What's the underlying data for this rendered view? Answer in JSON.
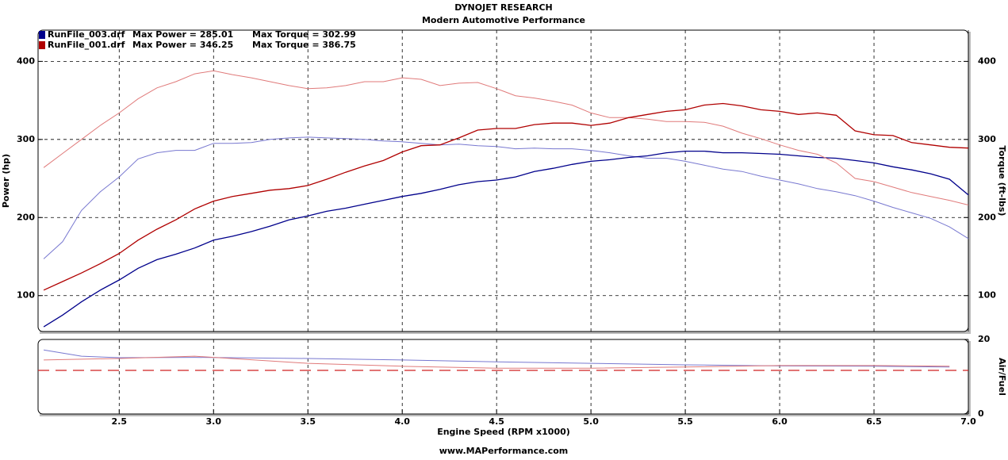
{
  "chart_data": {
    "type": "line",
    "title": "DYNOJET RESEARCH",
    "subtitle": "Modern Automotive Performance",
    "x_label": "Engine Speed (RPM x1000)",
    "y_label": "Power (hp)",
    "y2_label": "Torque (ft-lbs)",
    "afr_label": "Air/Fuel",
    "footer": "www.MAPerformance.com",
    "grid": true,
    "xlim": [
      2.07,
      7.0
    ],
    "xticks": [
      2.5,
      {
        "value": 3,
        "label": "3.0"
      },
      3.5,
      {
        "value": 4,
        "label": "4.0"
      },
      4.5,
      {
        "value": 5,
        "label": "5.0"
      },
      5.5,
      {
        "value": 6,
        "label": "6.0"
      },
      6.5,
      {
        "value": 7,
        "label": "7.0"
      }
    ],
    "ylim": [
      54,
      440
    ],
    "yticks": [
      100,
      200,
      300,
      400
    ],
    "y2lim": [
      54,
      440
    ],
    "y2ticks": [
      100,
      200,
      300,
      400
    ],
    "afr_ylim": [
      0,
      20
    ],
    "afr_yticks": [
      0,
      20
    ],
    "afr_reference": 11.7,
    "afr_reference_color": "#d02020",
    "x": [
      2.1,
      2.2,
      2.3,
      2.4,
      2.5,
      2.6,
      2.7,
      2.8,
      2.9,
      3.0,
      3.1,
      3.2,
      3.3,
      3.4,
      3.5,
      3.6,
      3.7,
      3.8,
      3.9,
      4.0,
      4.1,
      4.2,
      4.3,
      4.4,
      4.5,
      4.6,
      4.7,
      4.8,
      4.9,
      5.0,
      5.1,
      5.2,
      5.3,
      5.4,
      5.5,
      5.6,
      5.7,
      5.8,
      5.9,
      6.0,
      6.1,
      6.2,
      6.3,
      6.4,
      6.5,
      6.6,
      6.7,
      6.8,
      6.9,
      7.0
    ],
    "afr_x": [
      2.1,
      2.3,
      2.5,
      2.9,
      3.5,
      4.0,
      4.5,
      5.0,
      5.5,
      6.0,
      6.5,
      6.9
    ],
    "runs": [
      {
        "name": "RunFile_003.drf",
        "max_power_label": "Max Power = 285.01",
        "max_torque_label": "Max Torque = 302.99",
        "color": "#00008b",
        "torque_color": "#7878d0",
        "afr_color": "#7878d0",
        "power": [
          60,
          75,
          92,
          107,
          120,
          135,
          146,
          153,
          161,
          171,
          176,
          182,
          189,
          197,
          202,
          208,
          212,
          217,
          222,
          227,
          231,
          236,
          242,
          246,
          248,
          252,
          259,
          263,
          268,
          272,
          274,
          277,
          279,
          283,
          285,
          285,
          283,
          283,
          282,
          281,
          279,
          277,
          276,
          273,
          270,
          265,
          261,
          256,
          249,
          229
        ],
        "torque": [
          147,
          169,
          209,
          233,
          252,
          275,
          283,
          286,
          286,
          295,
          295,
          296,
          300,
          302,
          303,
          302,
          301,
          300,
          298,
          297,
          295,
          293,
          294,
          292,
          291,
          288,
          289,
          288,
          288,
          286,
          283,
          279,
          276,
          276,
          272,
          267,
          262,
          259,
          253,
          248,
          243,
          237,
          233,
          228,
          221,
          213,
          206,
          199,
          188,
          173
        ],
        "afr": [
          17.2,
          15.5,
          15.1,
          15.2,
          14.9,
          14.5,
          14.0,
          13.6,
          13.2,
          12.9,
          12.8,
          12.6
        ]
      },
      {
        "name": "RunFile_001.drf",
        "max_power_label": "Max Power = 346.25",
        "max_torque_label": "Max Torque = 386.75",
        "color": "#b00000",
        "torque_color": "#e07a7a",
        "afr_color": "#e07a7a",
        "power": [
          107,
          118,
          129,
          141,
          154,
          171,
          185,
          197,
          211,
          221,
          227,
          231,
          235,
          237,
          241,
          249,
          258,
          266,
          273,
          284,
          292,
          293,
          302,
          312,
          314,
          314,
          319,
          321,
          321,
          318,
          321,
          328,
          332,
          336,
          338,
          344,
          346,
          343,
          338,
          336,
          332,
          334,
          331,
          311,
          306,
          305,
          296,
          293,
          290,
          289
        ],
        "torque": [
          264,
          282,
          300,
          318,
          334,
          352,
          366,
          374,
          384,
          388,
          383,
          379,
          374,
          369,
          365,
          366,
          369,
          374,
          374,
          379,
          377,
          369,
          372,
          373,
          365,
          356,
          353,
          349,
          344,
          334,
          328,
          328,
          326,
          323,
          323,
          322,
          317,
          308,
          301,
          293,
          286,
          281,
          270,
          250,
          246,
          239,
          232,
          227,
          222,
          216
        ],
        "afr": [
          14.5,
          14.7,
          14.9,
          15.5,
          13.6,
          12.8,
          12.3,
          12.3,
          12.6,
          13.0,
          13.0,
          12.8
        ]
      }
    ]
  }
}
